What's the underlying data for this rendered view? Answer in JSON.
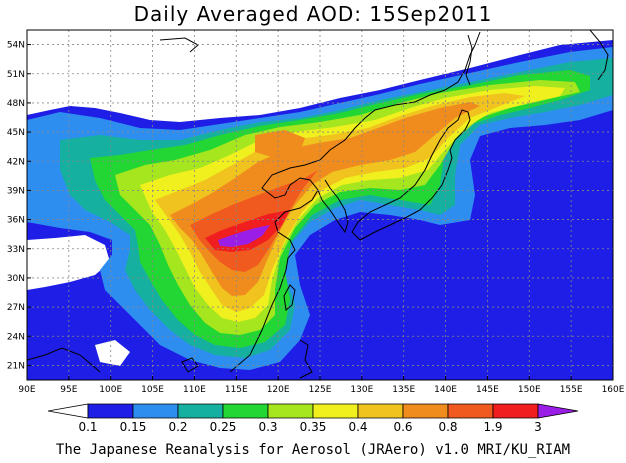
{
  "title": "Daily Averaged AOD: 15Sep2011",
  "footer": "The Japanese Reanalysis for Aerosol (JRAero) v1.0 MRI/KU_RIAM",
  "map": {
    "lon_range": [
      90,
      160
    ],
    "lat_range": [
      19.5,
      55.5
    ],
    "lon_ticks": [
      "90E",
      "95E",
      "100E",
      "105E",
      "110E",
      "115E",
      "120E",
      "125E",
      "130E",
      "135E",
      "140E",
      "145E",
      "150E",
      "155E",
      "160E"
    ],
    "lat_ticks": [
      "21N",
      "24N",
      "27N",
      "30N",
      "33N",
      "36N",
      "39N",
      "42N",
      "45N",
      "48N",
      "51N",
      "54N"
    ]
  },
  "colorbar": {
    "labels": [
      "0.1",
      "0.15",
      "0.2",
      "0.25",
      "0.3",
      "0.35",
      "0.4",
      "0.6",
      "0.8",
      "1.9",
      "3"
    ],
    "colors": [
      "#ffffff",
      "#1e1ee6",
      "#2e8ef0",
      "#16b0a0",
      "#22d633",
      "#a6e61e",
      "#f0f01e",
      "#f0c31e",
      "#f08c1e",
      "#f05a1e",
      "#f01e1e",
      "#9b1ee6"
    ]
  },
  "colors": {
    "ocean_low": "#1e1ee6",
    "background": "#ffffff"
  }
}
